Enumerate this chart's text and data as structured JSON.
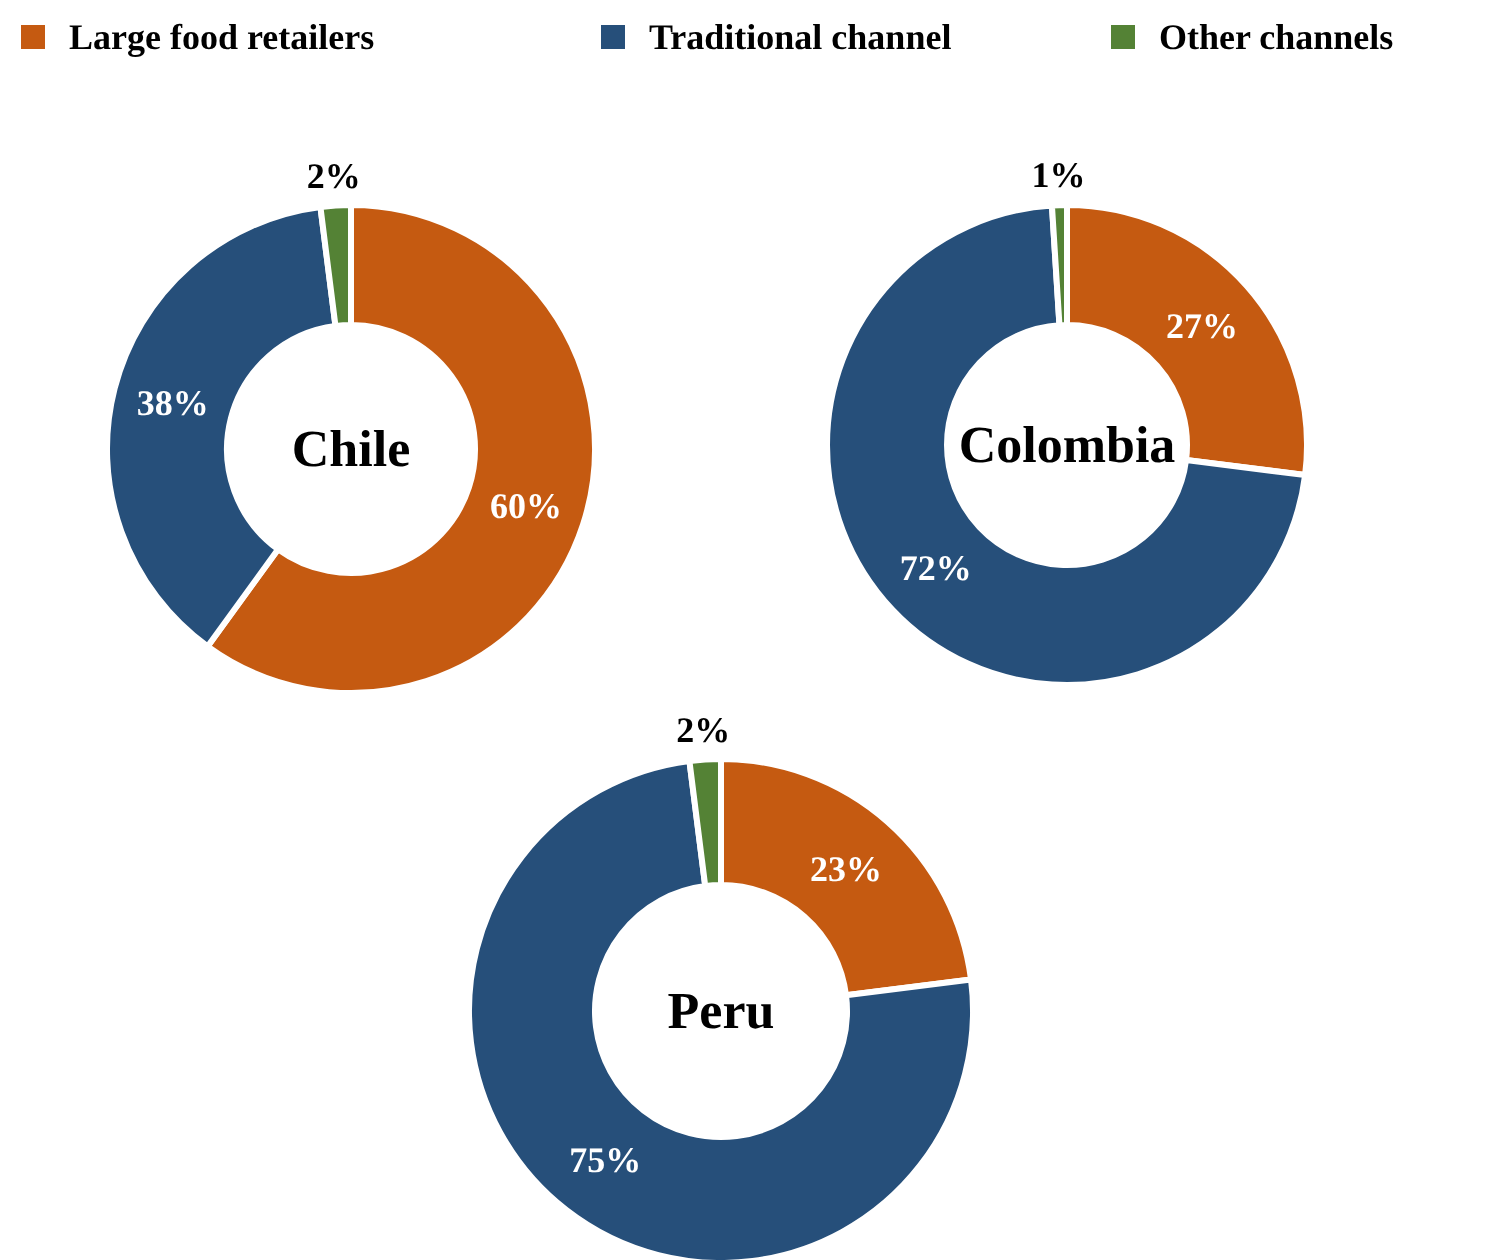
{
  "chart_data": [
    {
      "type": "donut",
      "title": "Chile",
      "categories": [
        "Large food retailers",
        "Traditional channel",
        "Other channels"
      ],
      "values": [
        60,
        38,
        2
      ],
      "colors": [
        "#c55a11",
        "#264f7a",
        "#548235"
      ],
      "value_labels": [
        "60%",
        "38%",
        "2%"
      ],
      "legend": "top"
    },
    {
      "type": "donut",
      "title": "Colombia",
      "categories": [
        null,
        null,
        null
      ],
      "values": [
        27,
        72,
        1
      ],
      "colors": [
        "#c55a11",
        "#264f7a",
        "#548235"
      ],
      "value_labels": [
        "27%",
        "72%",
        "1%"
      ]
    },
    {
      "type": "donut",
      "title": "Peru",
      "categories": [
        null,
        null,
        null
      ],
      "values": [
        23,
        75,
        2
      ],
      "colors": [
        "#c55a11",
        "#264f7a",
        "#548235"
      ],
      "value_labels": [
        "23%",
        "75%",
        "2%"
      ]
    }
  ]
}
